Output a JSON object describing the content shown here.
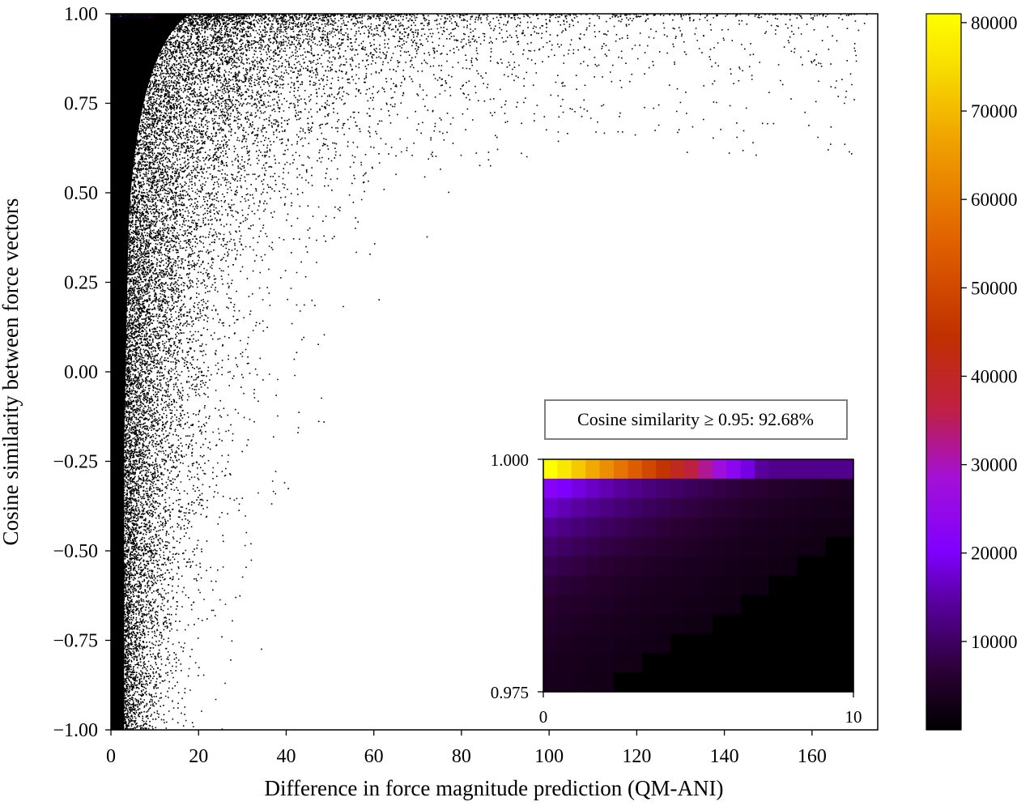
{
  "chart_data": [
    {
      "type": "heatmap",
      "title": "",
      "xlabel": "Difference in force magnitude prediction (QM-ANI)",
      "ylabel": "Cosine similarity between force vectors",
      "xlim": [
        0,
        175
      ],
      "ylim": [
        -1.0,
        1.0
      ],
      "xticks": [
        0,
        20,
        40,
        60,
        80,
        100,
        120,
        140,
        160
      ],
      "xtick_labels": [
        "0",
        "20",
        "40",
        "60",
        "80",
        "100",
        "120",
        "140",
        "160"
      ],
      "yticks": [
        -1.0,
        -0.75,
        -0.5,
        -0.25,
        0.0,
        0.25,
        0.5,
        0.75,
        1.0
      ],
      "ytick_labels": [
        "−1.00",
        "−0.75",
        "−0.50",
        "−0.25",
        "0.00",
        "0.25",
        "0.50",
        "0.75",
        "1.00"
      ],
      "grid": false,
      "colormap": "gnuplot",
      "description_of_density": "counts concentrated near x = 0 and cosine similarity = 1.0; sparse scatter extending to x ≈ 175 near similarity 1.0 and to x ≈ 50 near similarity -1.0"
    },
    {
      "type": "heatmap",
      "title": "",
      "inset": true,
      "xlim": [
        0,
        10
      ],
      "ylim": [
        0.975,
        1.0
      ],
      "xticks": [
        0,
        10
      ],
      "xtick_labels": [
        "0",
        "10"
      ],
      "yticks": [
        0.975,
        1.0
      ],
      "ytick_labels": [
        "0.975",
        "1.000"
      ],
      "annotation": "Cosine similarity ≥ 0.95: 92.68%",
      "grid": false
    },
    {
      "type": "colorbar",
      "range": [
        0,
        81000
      ],
      "ticks": [
        10000,
        20000,
        30000,
        40000,
        50000,
        60000,
        70000,
        80000
      ],
      "tick_labels": [
        "10000",
        "20000",
        "30000",
        "40000",
        "50000",
        "60000",
        "70000",
        "80000"
      ],
      "colormap": "gnuplot",
      "label": ""
    }
  ]
}
